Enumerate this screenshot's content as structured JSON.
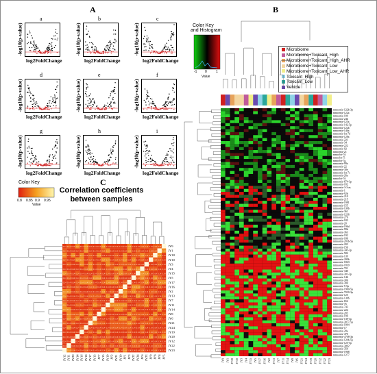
{
  "panels": {
    "a": "A",
    "b": "B",
    "c": "C"
  },
  "volcano": {
    "sublabels": [
      "a",
      "b",
      "c",
      "d",
      "e",
      "f",
      "g",
      "h",
      "i"
    ],
    "xlabel": "log2FoldChange",
    "ylabel": "-log10(p-value)"
  },
  "correlation": {
    "title_line1": "Correlation coefficients",
    "title_line2": "between samples",
    "key_title": "Color Key",
    "key_ticks": [
      "0.8",
      "0.85",
      "0.9",
      "0.95"
    ],
    "key_axis": "Value",
    "row_labels": [
      "JY9",
      "JY1",
      "JY18",
      "JY10",
      "JY3",
      "JY4",
      "JY15",
      "JY5",
      "JY17",
      "JY16",
      "JY2",
      "JY13",
      "JY7",
      "JY11",
      "JY14",
      "JY8",
      "JY6",
      "JY21",
      "JY24",
      "JY19",
      "JY20",
      "JY12",
      "JY22",
      "JY23"
    ],
    "col_labels": [
      "JY12",
      "JY11",
      "JY20",
      "JY14",
      "JY16",
      "JY18",
      "JY17",
      "JY13",
      "JY7",
      "JY15",
      "JY19",
      "JY2",
      "JY21",
      "JY10",
      "JY1",
      "JY3",
      "JY22",
      "JY24",
      "JY6",
      "JY23",
      "JY9",
      "JY8",
      "JY4",
      "JY5"
    ],
    "cell_value": "0.14"
  },
  "heatmap": {
    "key_title_line1": "Color Key",
    "key_title_line2": "and Histogram",
    "key_ticks": [
      "-1",
      "0",
      "1"
    ],
    "key_axis": "Value",
    "legend": [
      {
        "label": "Microbiome",
        "color": "#d02020"
      },
      {
        "label": "Microbiome+Toxicant_High",
        "color": "#c05a9a"
      },
      {
        "label": "Microbiome+Toxicant_High_AHR",
        "color": "#e7a35a"
      },
      {
        "label": "Microbiome+Toxicant_Low",
        "color": "#f3d6a0"
      },
      {
        "label": "Microbiome+Toxicant_Low_AHR",
        "color": "#f2ef8a"
      },
      {
        "label": "Toxicant_High",
        "color": "#8fd3e8"
      },
      {
        "label": "Toxicant_Low",
        "color": "#2aa79b"
      },
      {
        "label": "Vehicle",
        "color": "#6a4ab0"
      }
    ],
    "sample_colors": [
      "#d02020",
      "#6a4ab0",
      "#e7a35a",
      "#f3d6a0",
      "#f3d6a0",
      "#c05a9a",
      "#f2ef8a",
      "#6a4ab0",
      "#8fd3e8",
      "#2aa79b",
      "#f2ef8a",
      "#e7a35a",
      "#c05a9a",
      "#d02020",
      "#2aa79b",
      "#8fd3e8",
      "#6a4ab0",
      "#f3d6a0",
      "#e7a35a",
      "#2aa79b",
      "#d02020",
      "#c05a9a",
      "#8fd3e8",
      "#f2ef8a"
    ],
    "mirna": [
      "mmu-mir-122b-3p",
      "mmu-mir-122a",
      "mmu-mir-100",
      "mmu-mir-24b",
      "mmu-mir-125a",
      "mmu-mir-142-5p",
      "mmu-mir-122b",
      "mmu-mir-146a",
      "mmu-mir-let-7d",
      "mmu-mir-128a",
      "mmu-mir-221",
      "mmu-mir-34",
      "mmu-mir-222",
      "mmu-mir-92",
      "mmu-mir-21",
      "mmu-let-7d",
      "mmu-let-7i",
      "mmu-let-7g",
      "mmu-mir-99a",
      "mmu-mir-22",
      "mmu-mir-30e",
      "mmu-mir-let-7c",
      "mmu-mir-26a",
      "mmu-let-7d",
      "mmu-mir-674-3p",
      "mmu-mir-182",
      "mmu-mir-3-3-as",
      "mmu-mir-1",
      "mmu-mir-92b",
      "mmu-mir-210",
      "mmu-mir-215",
      "mmu-mir-1981",
      "mmu-mir-155",
      "mmu-mir-130b",
      "mmu-mir-361",
      "mmu-mir-1236",
      "mmu-mir-27b",
      "mmu-mir-183",
      "mmu-mir-20",
      "mmu-mir-196d",
      "mmu-mir-99b",
      "mmu-mir-363",
      "mmu-mir-192",
      "mmu-mir-186",
      "mmu-mir-203b-5p",
      "mmu-mir-203",
      "mmu-mir-150",
      "mmu-mir-345-3p",
      "mmu-mir-582",
      "mmu-mir-139",
      "mmu-mir-200b",
      "mmu-mir-1843",
      "mmu-mir-1839",
      "mmu-mir-701",
      "mmu-mir-340",
      "mmu-mir-301-3p",
      "mmu-mir-146",
      "mmu-mir-30b",
      "mmu-mir-30d",
      "mmu-mir-5-5p",
      "mmu-mir-1900-5p",
      "mmu-mir-7030-3p",
      "mmu-mir-125",
      "mmu-mir-1306",
      "mmu-mir-652",
      "mmu-mir-7b",
      "mmu-mir-743",
      "mmu-mir-224",
      "mmu-mir-205",
      "mmu-mir-196",
      "mmu-mir-139-3p",
      "mmu-mir-3077-5p",
      "mmu-mir-1904",
      "mmu-mir-17",
      "mmu-mir-20a",
      "mmu-mir-470",
      "mmu-mir-4708-3p",
      "mmu-mir-124b-5p",
      "mmu-mir-125-5p",
      "mmu-mir-3092",
      "mmu-mir-350",
      "mmu-mir-1968",
      "mmu-mir-1277"
    ],
    "samples": [
      "JY9",
      "JY1",
      "JY18",
      "JY10",
      "JY3",
      "JY4",
      "JY15",
      "JY5",
      "JY17",
      "JY16",
      "JY2",
      "JY13",
      "JY7",
      "JY11",
      "JY14",
      "JY8",
      "JY6",
      "JY21",
      "JY24",
      "JY19",
      "JY20",
      "JY12",
      "JY22",
      "JY23"
    ]
  }
}
